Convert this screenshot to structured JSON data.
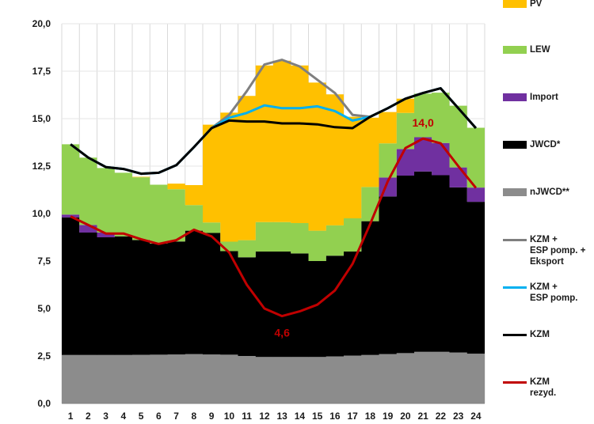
{
  "chart_data": {
    "type": "area",
    "title": "",
    "xlabel": "",
    "ylabel": "",
    "x": [
      1,
      2,
      3,
      4,
      5,
      6,
      7,
      8,
      9,
      10,
      11,
      12,
      13,
      14,
      15,
      16,
      17,
      18,
      19,
      20,
      21,
      22,
      23,
      24
    ],
    "xticks": [
      "1",
      "2",
      "3",
      "4",
      "5",
      "6",
      "7",
      "8",
      "9",
      "10",
      "11",
      "12",
      "13",
      "14",
      "15",
      "16",
      "17",
      "18",
      "19",
      "20",
      "21",
      "22",
      "23",
      "24"
    ],
    "ylim": [
      0,
      20
    ],
    "yticks": [
      "0,0",
      "2,5",
      "5,0",
      "7,5",
      "10,0",
      "12,5",
      "15,0",
      "17,5",
      "20,0"
    ],
    "grid": "vertical",
    "legend_position": "right",
    "stacked_series": [
      {
        "name": "nJWCD**",
        "color": "#8c8c8c",
        "values": [
          2.55,
          2.55,
          2.55,
          2.55,
          2.56,
          2.57,
          2.58,
          2.6,
          2.58,
          2.57,
          2.5,
          2.45,
          2.45,
          2.45,
          2.45,
          2.48,
          2.52,
          2.55,
          2.6,
          2.65,
          2.72,
          2.72,
          2.68,
          2.62
        ]
      },
      {
        "name": "JWCD*",
        "color": "#000000",
        "values": [
          7.25,
          6.45,
          6.2,
          6.25,
          6.05,
          5.85,
          5.95,
          6.5,
          6.4,
          5.45,
          5.2,
          5.55,
          5.55,
          5.45,
          5.05,
          5.3,
          5.48,
          7.05,
          8.3,
          9.35,
          9.5,
          9.3,
          8.7,
          8.0
        ]
      },
      {
        "name": "Import",
        "color": "#7030a0",
        "values": [
          0.15,
          0.4,
          0.25,
          0.0,
          0.0,
          0.0,
          0.0,
          0.0,
          0.0,
          0.0,
          0.0,
          0.0,
          0.0,
          0.0,
          0.0,
          0.0,
          0.0,
          0.0,
          1.0,
          1.4,
          1.8,
          1.7,
          1.05,
          0.75
        ]
      },
      {
        "name": "LEW",
        "color": "#92d050",
        "values": [
          3.7,
          3.55,
          3.4,
          3.35,
          3.3,
          3.1,
          2.75,
          1.35,
          0.55,
          0.5,
          0.9,
          1.55,
          1.55,
          1.6,
          1.6,
          1.6,
          1.75,
          1.8,
          1.8,
          1.9,
          2.3,
          2.65,
          3.25,
          3.15
        ]
      },
      {
        "name": "PV",
        "color": "#ffc000",
        "values": [
          0.0,
          0.0,
          0.0,
          0.0,
          0.03,
          0.0,
          0.3,
          1.05,
          5.15,
          6.8,
          7.6,
          8.25,
          8.5,
          8.3,
          7.8,
          6.9,
          5.35,
          3.65,
          1.65,
          0.75,
          0.0,
          0.0,
          0.0,
          0.0
        ]
      }
    ],
    "line_series": [
      {
        "name": "KZM + ESP pomp. + Eksport",
        "color": "#7f7f7f",
        "values": [
          13.65,
          12.95,
          12.45,
          12.35,
          12.1,
          12.15,
          12.55,
          13.5,
          14.5,
          15.2,
          16.45,
          17.85,
          18.1,
          17.75,
          17.05,
          16.35,
          15.2,
          15.1,
          15.55,
          16.05,
          16.35,
          16.6,
          15.55,
          14.5
        ]
      },
      {
        "name": "KZM + ESP pomp.",
        "color": "#00b0f0",
        "values": [
          13.65,
          12.95,
          12.45,
          12.35,
          12.1,
          12.15,
          12.55,
          13.5,
          14.5,
          15.05,
          15.3,
          15.7,
          15.55,
          15.55,
          15.65,
          15.4,
          14.9,
          15.1,
          15.55,
          16.05,
          16.35,
          16.6,
          15.55,
          14.5
        ]
      },
      {
        "name": "KZM",
        "color": "#000000",
        "values": [
          13.65,
          12.95,
          12.45,
          12.35,
          12.1,
          12.15,
          12.55,
          13.5,
          14.5,
          14.9,
          14.85,
          14.85,
          14.75,
          14.75,
          14.7,
          14.55,
          14.5,
          15.1,
          15.55,
          16.05,
          16.35,
          16.6,
          15.55,
          14.5
        ]
      },
      {
        "name": "KZM\nrezyd.",
        "color": "#c00000",
        "values": [
          9.85,
          9.4,
          8.95,
          8.95,
          8.65,
          8.4,
          8.6,
          9.15,
          8.8,
          7.95,
          6.25,
          5.0,
          4.6,
          4.85,
          5.2,
          5.95,
          7.35,
          9.45,
          11.7,
          13.45,
          13.95,
          13.7,
          12.5,
          11.35
        ]
      }
    ],
    "annotations": [
      {
        "text": "4,6",
        "x": 13,
        "y": 4.6,
        "placement": "below"
      },
      {
        "text": "14,0",
        "x": 21,
        "y": 14.0,
        "placement": "above"
      }
    ]
  },
  "legend": {
    "items": [
      {
        "label": "PV",
        "kind": "box",
        "color": "#ffc000"
      },
      {
        "label": "LEW",
        "kind": "box",
        "color": "#92d050"
      },
      {
        "label": "Import",
        "kind": "box",
        "color": "#7030a0"
      },
      {
        "label": "JWCD*",
        "kind": "box",
        "color": "#000000"
      },
      {
        "label": "nJWCD**",
        "kind": "box",
        "color": "#8c8c8c"
      },
      {
        "label": "KZM +\nESP pomp. +\nEksport",
        "kind": "line",
        "color": "#7f7f7f"
      },
      {
        "label": "KZM +\nESP pomp.",
        "kind": "line",
        "color": "#00b0f0"
      },
      {
        "label": "KZM",
        "kind": "line",
        "color": "#000000"
      },
      {
        "label": "KZM\nrezyd.",
        "kind": "line",
        "color": "#c00000"
      }
    ]
  }
}
